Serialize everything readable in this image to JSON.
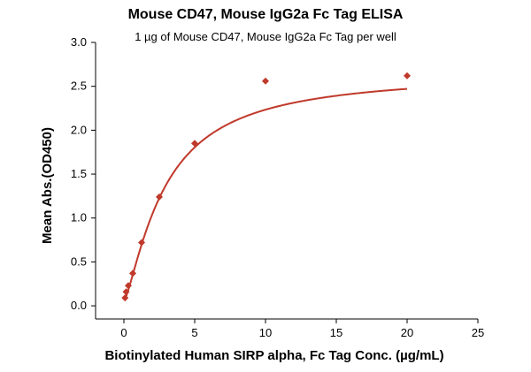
{
  "chart_data": {
    "type": "scatter",
    "title": "Mouse CD47, Mouse IgG2a Fc Tag ELISA",
    "subtitle": "1 µg of Mouse CD47, Mouse IgG2a Fc Tag per well",
    "xlabel": "Biotinylated Human SIRP alpha, Fc Tag Conc. (µg/mL)",
    "ylabel": "Mean Abs.(OD450)",
    "xlim": [
      -2,
      25
    ],
    "ylim": [
      -0.15,
      3.0
    ],
    "x_ticks": [
      0,
      5,
      10,
      15,
      20,
      25
    ],
    "y_ticks": [
      0.0,
      0.5,
      1.0,
      1.5,
      2.0,
      2.5,
      3.0
    ],
    "grid": false,
    "series": [
      {
        "x": [
          0.078,
          0.156,
          0.313,
          0.625,
          1.25,
          2.5,
          5,
          10,
          20
        ],
        "y": [
          0.09,
          0.16,
          0.23,
          0.37,
          0.72,
          1.24,
          1.85,
          2.56,
          2.62
        ],
        "marker": "diamond",
        "color": "#c0392b"
      }
    ],
    "fit_curve": {
      "model": "four-parameter logistic",
      "bottom": 0.05,
      "top": 2.66,
      "ec50": 2.9,
      "hill": 1.32,
      "color": "#c0392b"
    }
  }
}
